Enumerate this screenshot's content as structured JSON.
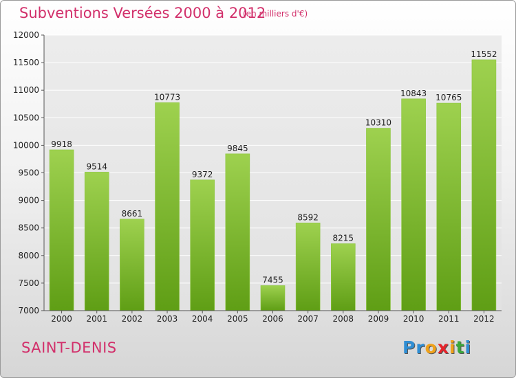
{
  "chart_data": {
    "type": "bar",
    "title": "Subventions Versées 2000 à 2012",
    "subtitle": "(en milliers d'€)",
    "categories": [
      "2000",
      "2001",
      "2002",
      "2003",
      "2004",
      "2005",
      "2006",
      "2007",
      "2008",
      "2009",
      "2010",
      "2011",
      "2012"
    ],
    "values": [
      9918,
      9514,
      8661,
      10773,
      9372,
      9845,
      7455,
      8592,
      8215,
      10310,
      10843,
      10765,
      11552
    ],
    "ylim": [
      7000,
      12000
    ],
    "yticks": [
      7000,
      7500,
      8000,
      8500,
      9000,
      9500,
      10000,
      10500,
      11000,
      11500,
      12000
    ],
    "xlabel": "",
    "ylabel": "",
    "grid": true,
    "bar_color_top": "#9ed14f",
    "bar_color_bottom": "#5f9e15"
  },
  "commune": "SAINT-DENIS",
  "brand": {
    "letters": [
      "P",
      "r",
      "o",
      "x",
      "i",
      "t",
      "i"
    ],
    "colors": [
      "#2f8ed4",
      "#2f8ed4",
      "#f0a21a",
      "#e5242b",
      "#f0a21a",
      "#3aa73a",
      "#2f8ed4"
    ]
  }
}
